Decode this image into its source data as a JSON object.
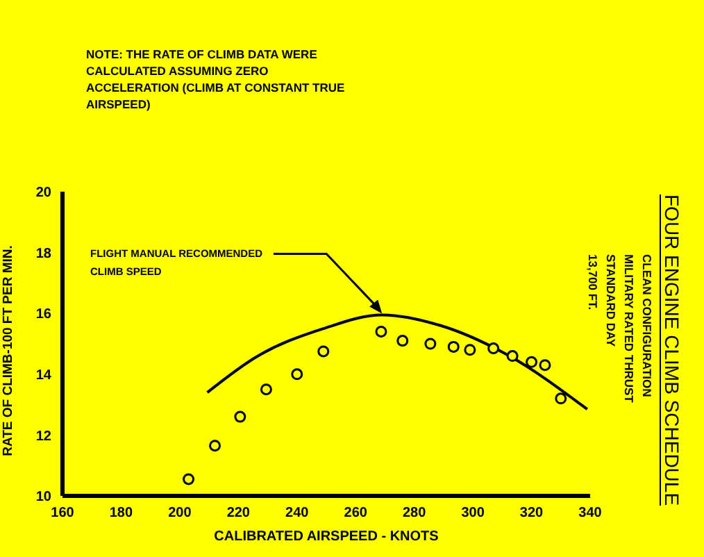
{
  "chart_data": {
    "type": "scatter",
    "title": "FOUR ENGINE CLIMB SCHEDULE",
    "subtitle": "CLEAN CONFIGURATION\nMILITARY RATED THRUST\nSTANDARD DAY\n13,700 FT.",
    "xlabel": "CALIBRATED AIRSPEED - KNOTS",
    "ylabel": "RATE OF CLIMB-100 FT PER MIN.",
    "annotations": [
      "NOTE: THE RATE OF CLIMB DATA WERE CALCULATED ASSUMING ZERO ACCELERATION (CLIMB AT CONSTANT TRUE AIRSPEED)",
      {
        "text": "FLIGHT MANUAL RECOMMENDED CLIMB SPEED",
        "x": 269,
        "y": 15.95
      }
    ],
    "series": [
      {
        "color": "#000000",
        "marker": "circle",
        "x": [
          203,
          212,
          220.6,
          229.5,
          240,
          249,
          268.7,
          276,
          285.5,
          293.4,
          299,
          307,
          313.5,
          320,
          324.6,
          330
        ],
        "values": [
          10.55,
          11.65,
          12.6,
          13.5,
          14,
          14.75,
          15.4,
          15.1,
          15,
          14.9,
          14.8,
          14.85,
          14.6,
          14.4,
          14.3,
          13.2
        ]
      },
      {
        "type": "line",
        "color": "#000000",
        "marker": "none",
        "x": [
          209.4,
          225.8,
          249,
          269,
          289,
          310.6,
          339
        ],
        "values": [
          13.4,
          14.55,
          15.5,
          15.95,
          15.6,
          14.7,
          12.85
        ]
      }
    ],
    "xlim": [
      160,
      340
    ],
    "xticks": [
      160,
      180,
      200,
      220,
      240,
      260,
      280,
      300,
      320,
      340
    ],
    "ylim": [
      10,
      20
    ],
    "yticks": [
      10,
      12,
      14,
      16,
      18,
      20
    ]
  }
}
